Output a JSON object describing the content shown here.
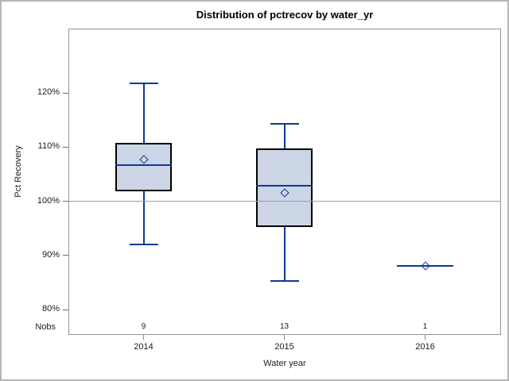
{
  "figure": {
    "title": "Distribution of pctrecov by water_yr"
  },
  "chart_data": {
    "type": "boxplot",
    "title": "Distribution of pctrecov by water_yr",
    "xlabel": "Water year",
    "ylabel": "Pct Recovery",
    "categories": [
      "2014",
      "2015",
      "2016"
    ],
    "y_ticks": [
      80,
      90,
      100,
      110,
      120
    ],
    "y_tick_labels": [
      "80%",
      "90%",
      "100%",
      "110%",
      "120%"
    ],
    "ylim": [
      75,
      132
    ],
    "reference_line": 100,
    "grid": false,
    "nobs_label": "Nobs",
    "series": [
      {
        "category": "2014",
        "nobs": "9",
        "low": 92.0,
        "q1": 101.8,
        "median": 106.7,
        "q3": 110.7,
        "high": 121.8,
        "mean": 107.7,
        "single": false
      },
      {
        "category": "2015",
        "nobs": "13",
        "low": 85.3,
        "q1": 95.2,
        "median": 102.8,
        "q3": 109.7,
        "high": 114.3,
        "mean": 101.6,
        "single": false
      },
      {
        "category": "2016",
        "nobs": "1",
        "low": 88.0,
        "q1": 88.0,
        "median": 88.0,
        "q3": 88.0,
        "high": 88.0,
        "mean": 88.0,
        "single": true
      }
    ],
    "colors": {
      "box_fill": "#ccd5e5",
      "box_border": "#000000",
      "line_blue": "#0b3b96",
      "reference_line": "#9c9c9c",
      "frame": "#959595",
      "tick": "#6e6e6e",
      "text": "#1a1a1a"
    }
  }
}
